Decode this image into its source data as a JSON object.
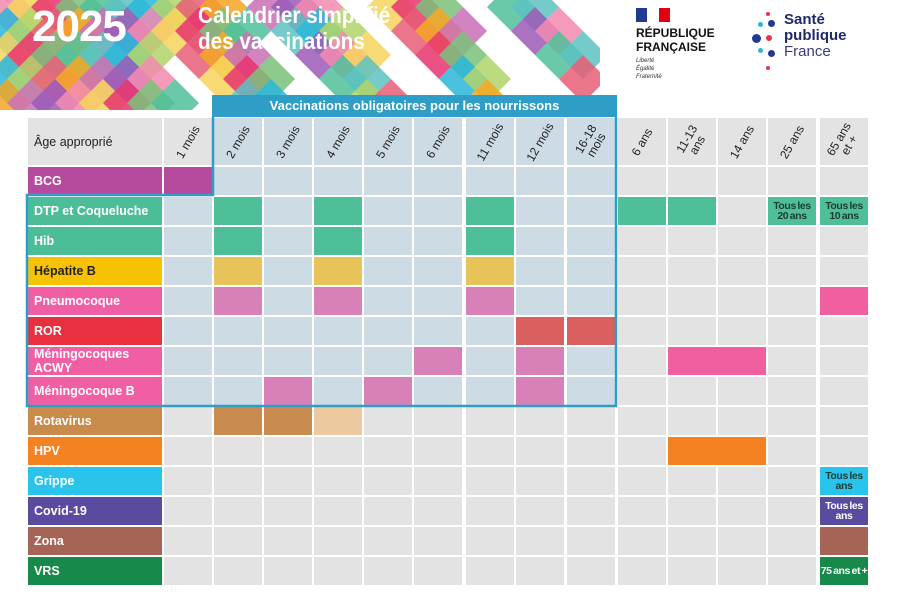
{
  "header": {
    "year": "2025",
    "title_line1": "Calendrier simplifié",
    "title_line2": "des vaccinations",
    "rf": {
      "line1": "RÉPUBLIQUE",
      "line2": "FRANÇAISE",
      "motto": [
        "Liberté",
        "Égalité",
        "Fraternité"
      ]
    },
    "spf": {
      "line1": "Santé",
      "line2": "publique",
      "line3": "France"
    }
  },
  "banner": "Vaccinations obligatoires pour les nourrissons",
  "corner_label": "Âge approprié",
  "columns": [
    "1 mois",
    "2 mois",
    "3 mois",
    "4 mois",
    "5 mois",
    "6 mois",
    "11 mois",
    "12 mois",
    "16-18\nmois",
    "6 ans",
    "11-13\nans",
    "14 ans",
    "25 ans",
    "65 ans\net +"
  ],
  "colors": {
    "in_box": "#cddce4",
    "out_box": "#e3e3e3",
    "box_border": "#2e9ec6"
  },
  "rows": [
    {
      "label": "BCG",
      "color": "#b54a9e",
      "cells": [
        {
          "col": 0,
          "color": "#b54a9e"
        }
      ]
    },
    {
      "label": "DTP et Coqueluche",
      "color": "#4dbd98",
      "cells": [
        {
          "col": 1,
          "color": "#4fbf9a"
        },
        {
          "col": 3,
          "color": "#4fbf9a"
        },
        {
          "col": 6,
          "color": "#4fbf9a"
        },
        {
          "col": 9,
          "color": "#4fbf9a"
        },
        {
          "col": 10,
          "color": "#4fbf9a"
        },
        {
          "col": 12,
          "color": "#4fbf9a",
          "text": "Tous les 20 ans"
        },
        {
          "col": 13,
          "color": "#4fbf9a",
          "text": "Tous les 10 ans"
        }
      ]
    },
    {
      "label": "Hib",
      "color": "#4dbd98",
      "cells": [
        {
          "col": 1,
          "color": "#4fbf9a"
        },
        {
          "col": 3,
          "color": "#4fbf9a"
        },
        {
          "col": 6,
          "color": "#4fbf9a"
        }
      ]
    },
    {
      "label": "Hépatite B",
      "color": "#f7c300",
      "dark": true,
      "cells": [
        {
          "col": 1,
          "color": "#e8c35a"
        },
        {
          "col": 3,
          "color": "#e8c35a"
        },
        {
          "col": 6,
          "color": "#e8c35a"
        }
      ]
    },
    {
      "label": "Pneumocoque",
      "color": "#f05fa3",
      "cells": [
        {
          "col": 1,
          "color": "#d880b8"
        },
        {
          "col": 3,
          "color": "#d880b8"
        },
        {
          "col": 6,
          "color": "#d880b8"
        },
        {
          "col": 13,
          "color": "#f05fa0"
        }
      ]
    },
    {
      "label": "ROR",
      "color": "#e8303f",
      "cells": [
        {
          "col": 7,
          "color": "#d9605e"
        },
        {
          "col": 8,
          "color": "#d9605e"
        }
      ]
    },
    {
      "label": "Méningocoques ACWY",
      "color": "#f05fa3",
      "cells": [
        {
          "col": 5,
          "color": "#d880b8"
        },
        {
          "col": 7,
          "color": "#d880b8"
        },
        {
          "col": 10,
          "color": "#f05fa0",
          "span": 2
        }
      ]
    },
    {
      "label": "Méningocoque B",
      "color": "#f05fa3",
      "cells": [
        {
          "col": 2,
          "color": "#d880b8"
        },
        {
          "col": 4,
          "color": "#d880b8"
        },
        {
          "col": 7,
          "color": "#d880b8"
        }
      ]
    },
    {
      "label": "Rotavirus",
      "color": "#c88b4a",
      "cells": [
        {
          "col": 1,
          "color": "#c98b4e"
        },
        {
          "col": 2,
          "color": "#c98b4e"
        },
        {
          "col": 3,
          "color": "#ecc99e"
        }
      ]
    },
    {
      "label": "HPV",
      "color": "#f58220",
      "cells": [
        {
          "col": 10,
          "color": "#f58220",
          "span": 2
        }
      ]
    },
    {
      "label": "Grippe",
      "color": "#29c3ec",
      "cells": [
        {
          "col": 13,
          "color": "#29c3ec",
          "text": "Tous les ans"
        }
      ]
    },
    {
      "label": "Covid-19",
      "color": "#5a4ba0",
      "cells": [
        {
          "col": 13,
          "color": "#5a4ba0",
          "text": "Tous les ans",
          "light": true
        }
      ]
    },
    {
      "label": "Zona",
      "color": "#a66456",
      "cells": [
        {
          "col": 13,
          "color": "#a66456"
        }
      ]
    },
    {
      "label": "VRS",
      "color": "#17894a",
      "cells": [
        {
          "col": 13,
          "color": "#17894a",
          "text": "75 ans et +",
          "light": true
        }
      ]
    }
  ]
}
